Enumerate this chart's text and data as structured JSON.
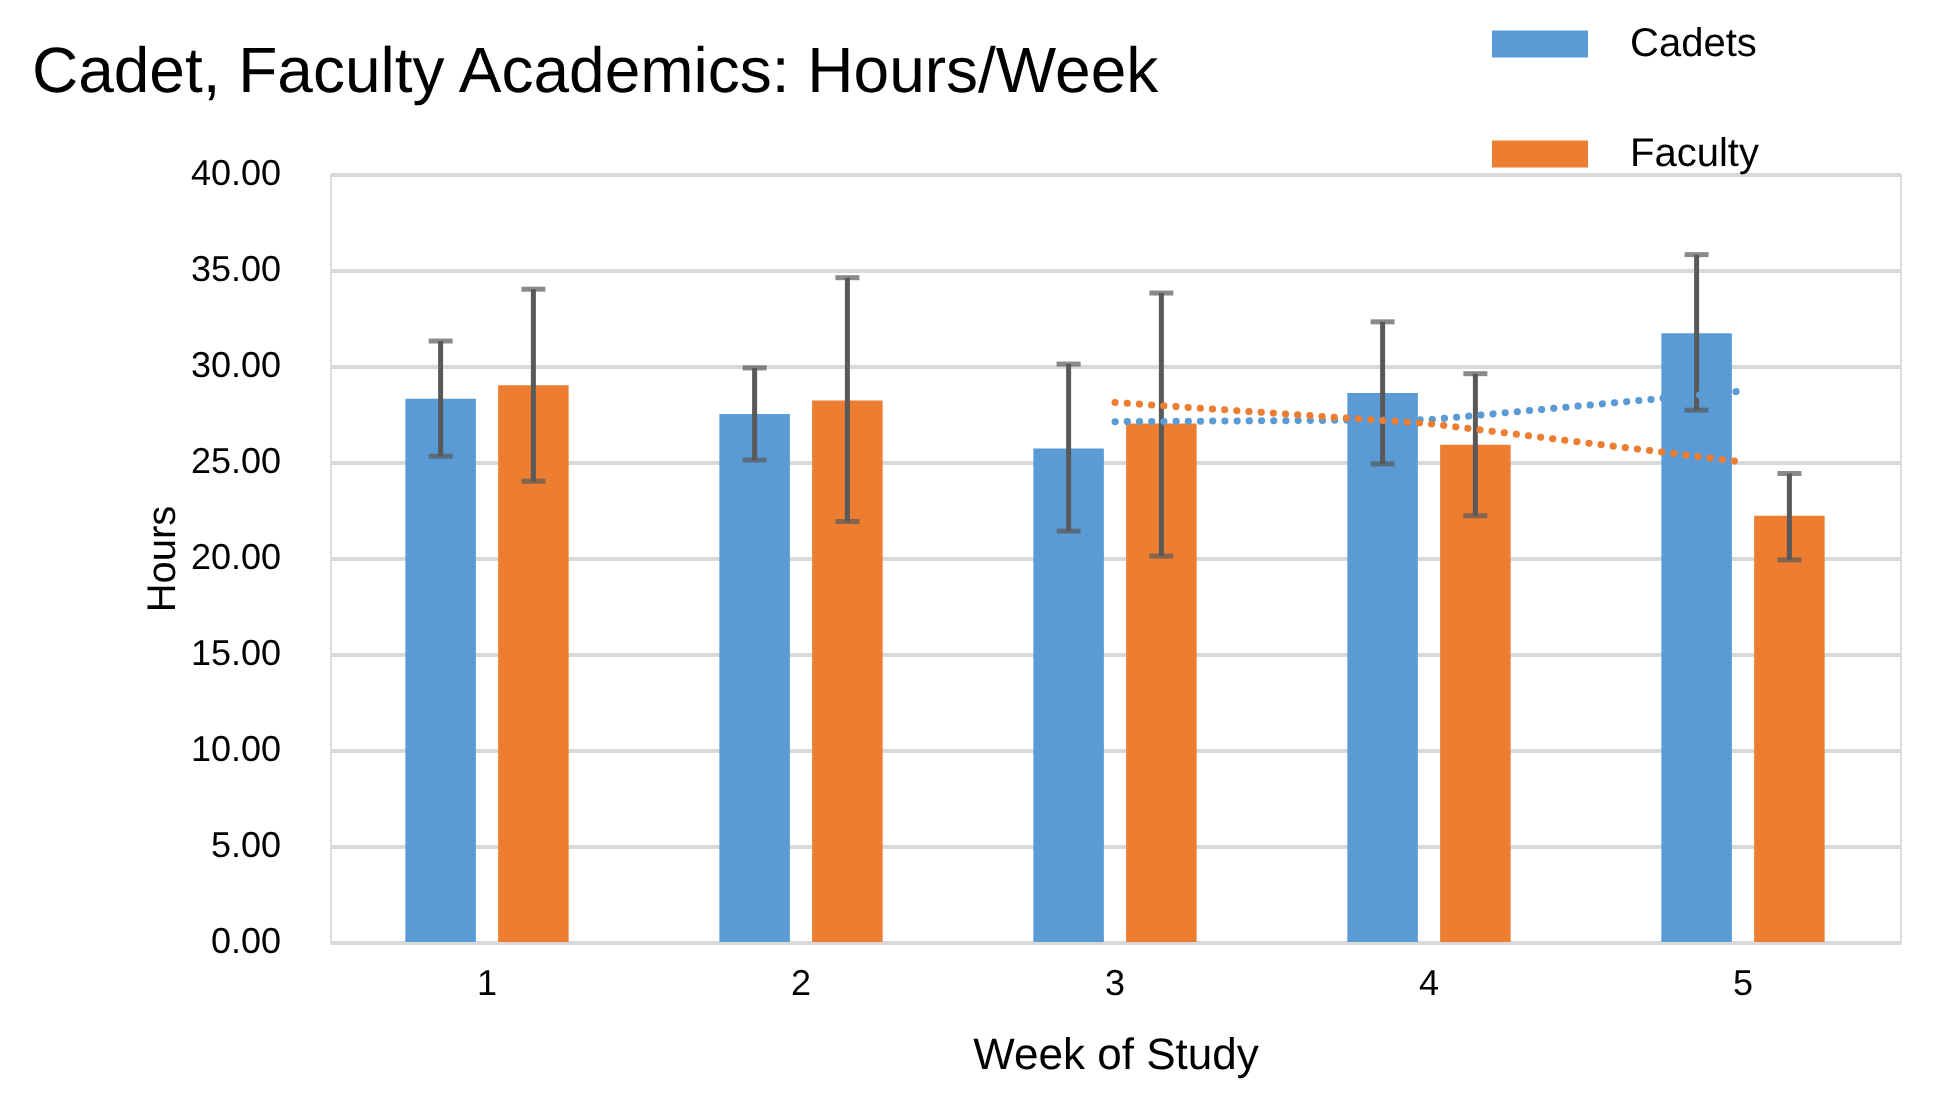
{
  "chart_data": {
    "type": "bar",
    "title": "Cadet, Faculty Academics: Hours/Week",
    "xlabel": "Week of Study",
    "ylabel": "Hours",
    "categories": [
      "1",
      "2",
      "3",
      "4",
      "5"
    ],
    "series": [
      {
        "name": "Cadets",
        "color": "#5b9bd5",
        "values": [
          28.3,
          27.5,
          25.7,
          28.6,
          31.7
        ],
        "errors": [
          [
            25.3,
            31.3
          ],
          [
            25.1,
            29.9
          ],
          [
            21.4,
            30.1
          ],
          [
            24.9,
            32.3
          ],
          [
            27.7,
            35.8
          ]
        ]
      },
      {
        "name": "Faculty",
        "color": "#ed7d31",
        "values": [
          29.0,
          28.2,
          27.0,
          25.9,
          22.2
        ],
        "errors": [
          [
            24.0,
            34.0
          ],
          [
            21.9,
            34.6
          ],
          [
            20.1,
            33.8
          ],
          [
            22.2,
            29.6
          ],
          [
            19.9,
            24.4
          ]
        ]
      },
      {
        "type": "line",
        "color": "#5b9bd5",
        "line_style": "dotted",
        "x": [
          "3",
          "4",
          "5"
        ],
        "values": [
          27.1,
          27.2,
          28.7
        ]
      },
      {
        "type": "line",
        "color": "#ed7d31",
        "line_style": "dotted",
        "x": [
          "3",
          "4",
          "5"
        ],
        "values": [
          28.1,
          27.0,
          25.0
        ]
      }
    ],
    "ylim": [
      0,
      40
    ],
    "yticks": [
      {
        "value": 0,
        "label": "0.00"
      },
      {
        "value": 5,
        "label": "5.00"
      },
      {
        "value": 10,
        "label": "10.00"
      },
      {
        "value": 15,
        "label": "15.00"
      },
      {
        "value": 20,
        "label": "20.00"
      },
      {
        "value": 25,
        "label": "25.00"
      },
      {
        "value": 30,
        "label": "30.00"
      },
      {
        "value": 35,
        "label": "35.00"
      },
      {
        "value": 40,
        "label": "40.00"
      }
    ],
    "grid": "y",
    "legend": "top right"
  }
}
